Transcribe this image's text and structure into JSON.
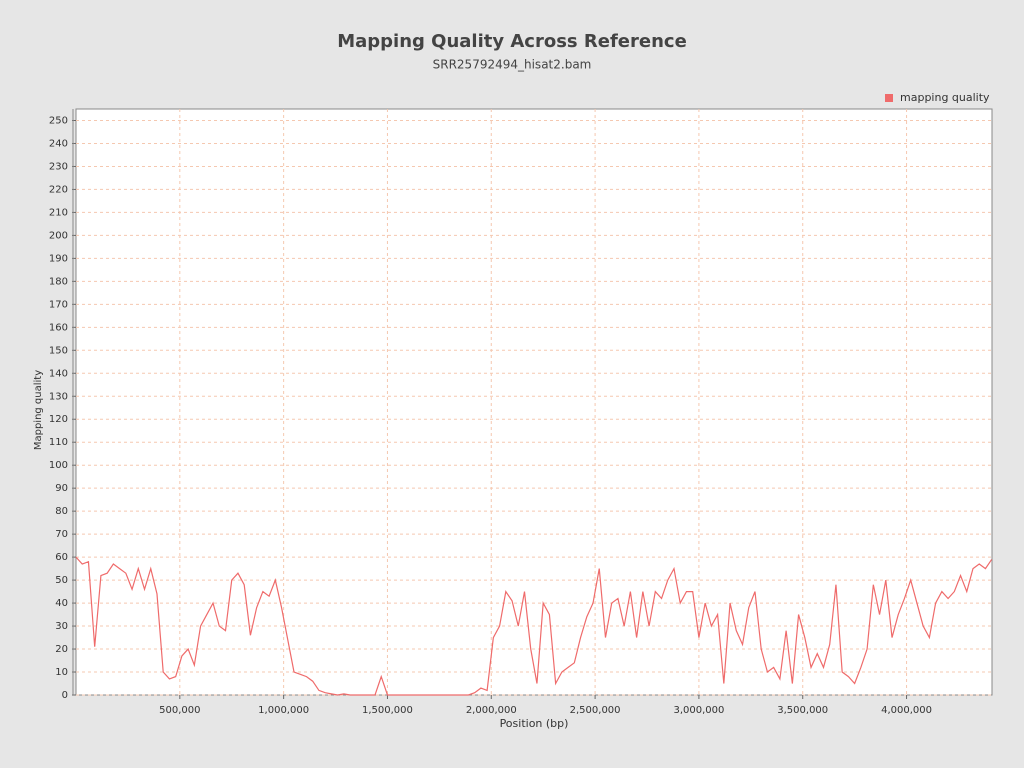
{
  "chart_data": {
    "type": "line",
    "title": "Mapping Quality Across Reference",
    "subtitle": "SRR25792494_hisat2.bam",
    "x_label": "Position (bp)",
    "y_label": "Mapping quality",
    "x": [
      0,
      30000,
      60000,
      90000,
      120000,
      150000,
      180000,
      210000,
      240000,
      270000,
      300000,
      330000,
      360000,
      390000,
      420000,
      450000,
      480000,
      510000,
      540000,
      570000,
      600000,
      630000,
      660000,
      690000,
      720000,
      750000,
      780000,
      810000,
      840000,
      870000,
      900000,
      930000,
      960000,
      990000,
      1020000,
      1050000,
      1080000,
      1110000,
      1140000,
      1170000,
      1200000,
      1230000,
      1260000,
      1290000,
      1320000,
      1350000,
      1380000,
      1410000,
      1440000,
      1470000,
      1500000,
      1530000,
      1560000,
      1590000,
      1620000,
      1650000,
      1680000,
      1710000,
      1740000,
      1770000,
      1800000,
      1830000,
      1860000,
      1890000,
      1920000,
      1950000,
      1980000,
      2010000,
      2040000,
      2070000,
      2100000,
      2130000,
      2160000,
      2190000,
      2220000,
      2250000,
      2280000,
      2310000,
      2340000,
      2370000,
      2400000,
      2430000,
      2460000,
      2490000,
      2520000,
      2550000,
      2580000,
      2610000,
      2640000,
      2670000,
      2700000,
      2730000,
      2760000,
      2790000,
      2820000,
      2850000,
      2880000,
      2910000,
      2940000,
      2970000,
      3000000,
      3030000,
      3060000,
      3090000,
      3120000,
      3150000,
      3180000,
      3210000,
      3240000,
      3270000,
      3300000,
      3330000,
      3360000,
      3390000,
      3420000,
      3450000,
      3480000,
      3510000,
      3540000,
      3570000,
      3600000,
      3630000,
      3660000,
      3690000,
      3720000,
      3750000,
      3780000,
      3810000,
      3840000,
      3870000,
      3900000,
      3930000,
      3960000,
      3990000,
      4020000,
      4050000,
      4080000,
      4110000,
      4140000,
      4170000,
      4200000,
      4230000,
      4260000,
      4290000,
      4320000,
      4350000,
      4380000,
      4410000
    ],
    "series": [
      {
        "name": "mapping quality",
        "color": "#ef6b6b",
        "values": [
          60,
          57,
          58,
          21,
          52,
          53,
          57,
          55,
          53,
          46,
          55,
          46,
          55,
          44,
          10,
          7,
          8,
          17,
          20,
          13,
          30,
          35,
          40,
          30,
          28,
          50,
          53,
          48,
          26,
          38,
          45,
          43,
          50,
          38,
          24,
          10,
          9,
          8,
          6,
          2,
          1,
          0.5,
          0,
          0.5,
          0,
          0,
          0,
          0,
          0,
          8,
          0,
          0,
          0,
          0,
          0,
          0,
          0,
          0,
          0,
          0,
          0,
          0,
          0,
          0,
          1,
          3,
          2,
          25,
          30,
          45,
          41,
          30,
          45,
          20,
          5,
          40,
          35,
          5,
          10,
          12,
          14,
          25,
          34,
          40,
          55,
          25,
          40,
          42,
          30,
          45,
          25,
          45,
          30,
          45,
          42,
          50,
          55,
          40,
          45,
          45,
          25,
          40,
          30,
          35,
          5,
          40,
          28,
          22,
          38,
          45,
          20,
          10,
          12,
          7,
          28,
          5,
          35,
          25,
          12,
          18,
          12,
          22,
          48,
          10,
          8,
          5,
          12,
          20,
          48,
          35,
          50,
          25,
          35,
          42,
          50,
          40,
          30,
          25,
          40,
          45,
          42,
          45,
          52,
          45,
          55,
          57,
          55,
          59
        ]
      }
    ],
    "xlim": [
      0,
      4411532
    ],
    "ylim": [
      0,
      255
    ],
    "xticks": [
      {
        "value": 500000,
        "label": "500,000"
      },
      {
        "value": 1000000,
        "label": "1,000,000"
      },
      {
        "value": 1500000,
        "label": "1,500,000"
      },
      {
        "value": 2000000,
        "label": "2,000,000"
      },
      {
        "value": 2500000,
        "label": "2,500,000"
      },
      {
        "value": 3000000,
        "label": "3,000,000"
      },
      {
        "value": 3500000,
        "label": "3,500,000"
      },
      {
        "value": 4000000,
        "label": "4,000,000"
      }
    ],
    "yticks": [
      0,
      10,
      20,
      30,
      40,
      50,
      60,
      70,
      80,
      90,
      100,
      110,
      120,
      130,
      140,
      150,
      160,
      170,
      180,
      190,
      200,
      210,
      220,
      230,
      240,
      250
    ],
    "grid": true,
    "legend": "top-right"
  }
}
